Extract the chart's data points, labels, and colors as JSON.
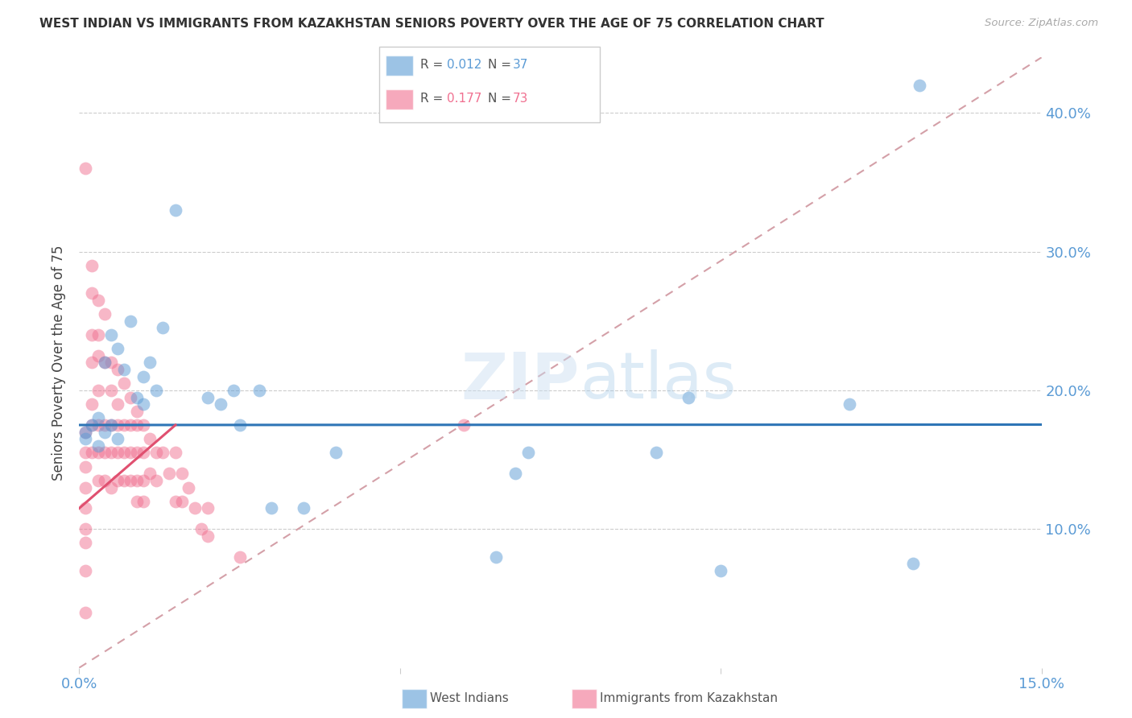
{
  "title": "WEST INDIAN VS IMMIGRANTS FROM KAZAKHSTAN SENIORS POVERTY OVER THE AGE OF 75 CORRELATION CHART",
  "source": "Source: ZipAtlas.com",
  "ylabel": "Seniors Poverty Over the Age of 75",
  "xlim": [
    0.0,
    0.15
  ],
  "ylim": [
    0.0,
    0.44
  ],
  "blue_color": "#5b9bd5",
  "pink_color": "#f07090",
  "grid_color": "#cccccc",
  "ref_line_color": "#d4a0a8",
  "blue_line_color": "#2e75b6",
  "pink_line_color": "#e05070",
  "west_indians_x": [
    0.001,
    0.001,
    0.002,
    0.003,
    0.003,
    0.004,
    0.004,
    0.005,
    0.005,
    0.006,
    0.006,
    0.007,
    0.008,
    0.009,
    0.01,
    0.01,
    0.011,
    0.012,
    0.013,
    0.015,
    0.02,
    0.022,
    0.024,
    0.025,
    0.028,
    0.03,
    0.035,
    0.04,
    0.065,
    0.068,
    0.07,
    0.09,
    0.095,
    0.1,
    0.12,
    0.13,
    0.131
  ],
  "west_indians_y": [
    0.17,
    0.165,
    0.175,
    0.18,
    0.16,
    0.17,
    0.22,
    0.175,
    0.24,
    0.23,
    0.165,
    0.215,
    0.25,
    0.195,
    0.21,
    0.19,
    0.22,
    0.2,
    0.245,
    0.33,
    0.195,
    0.19,
    0.2,
    0.175,
    0.2,
    0.115,
    0.115,
    0.155,
    0.08,
    0.14,
    0.155,
    0.155,
    0.195,
    0.07,
    0.19,
    0.075,
    0.42
  ],
  "kazakhstan_x": [
    0.001,
    0.001,
    0.001,
    0.001,
    0.001,
    0.001,
    0.001,
    0.001,
    0.001,
    0.001,
    0.002,
    0.002,
    0.002,
    0.002,
    0.002,
    0.002,
    0.002,
    0.003,
    0.003,
    0.003,
    0.003,
    0.003,
    0.003,
    0.003,
    0.004,
    0.004,
    0.004,
    0.004,
    0.004,
    0.005,
    0.005,
    0.005,
    0.005,
    0.005,
    0.006,
    0.006,
    0.006,
    0.006,
    0.006,
    0.007,
    0.007,
    0.007,
    0.007,
    0.008,
    0.008,
    0.008,
    0.008,
    0.009,
    0.009,
    0.009,
    0.009,
    0.009,
    0.01,
    0.01,
    0.01,
    0.01,
    0.011,
    0.011,
    0.012,
    0.012,
    0.013,
    0.014,
    0.015,
    0.015,
    0.016,
    0.016,
    0.017,
    0.018,
    0.019,
    0.02,
    0.02,
    0.025,
    0.06
  ],
  "kazakhstan_y": [
    0.36,
    0.17,
    0.155,
    0.145,
    0.13,
    0.115,
    0.1,
    0.09,
    0.07,
    0.04,
    0.29,
    0.27,
    0.24,
    0.22,
    0.19,
    0.175,
    0.155,
    0.265,
    0.24,
    0.225,
    0.2,
    0.175,
    0.155,
    0.135,
    0.255,
    0.22,
    0.175,
    0.155,
    0.135,
    0.22,
    0.2,
    0.175,
    0.155,
    0.13,
    0.215,
    0.19,
    0.175,
    0.155,
    0.135,
    0.205,
    0.175,
    0.155,
    0.135,
    0.195,
    0.175,
    0.155,
    0.135,
    0.185,
    0.175,
    0.155,
    0.135,
    0.12,
    0.175,
    0.155,
    0.135,
    0.12,
    0.165,
    0.14,
    0.155,
    0.135,
    0.155,
    0.14,
    0.155,
    0.12,
    0.14,
    0.12,
    0.13,
    0.115,
    0.1,
    0.115,
    0.095,
    0.08,
    0.175
  ],
  "blue_line_y_intercept": 0.175,
  "blue_line_slope": 0.002,
  "pink_line_x0": 0.0,
  "pink_line_y0": 0.115,
  "pink_line_x1": 0.015,
  "pink_line_y1": 0.175
}
